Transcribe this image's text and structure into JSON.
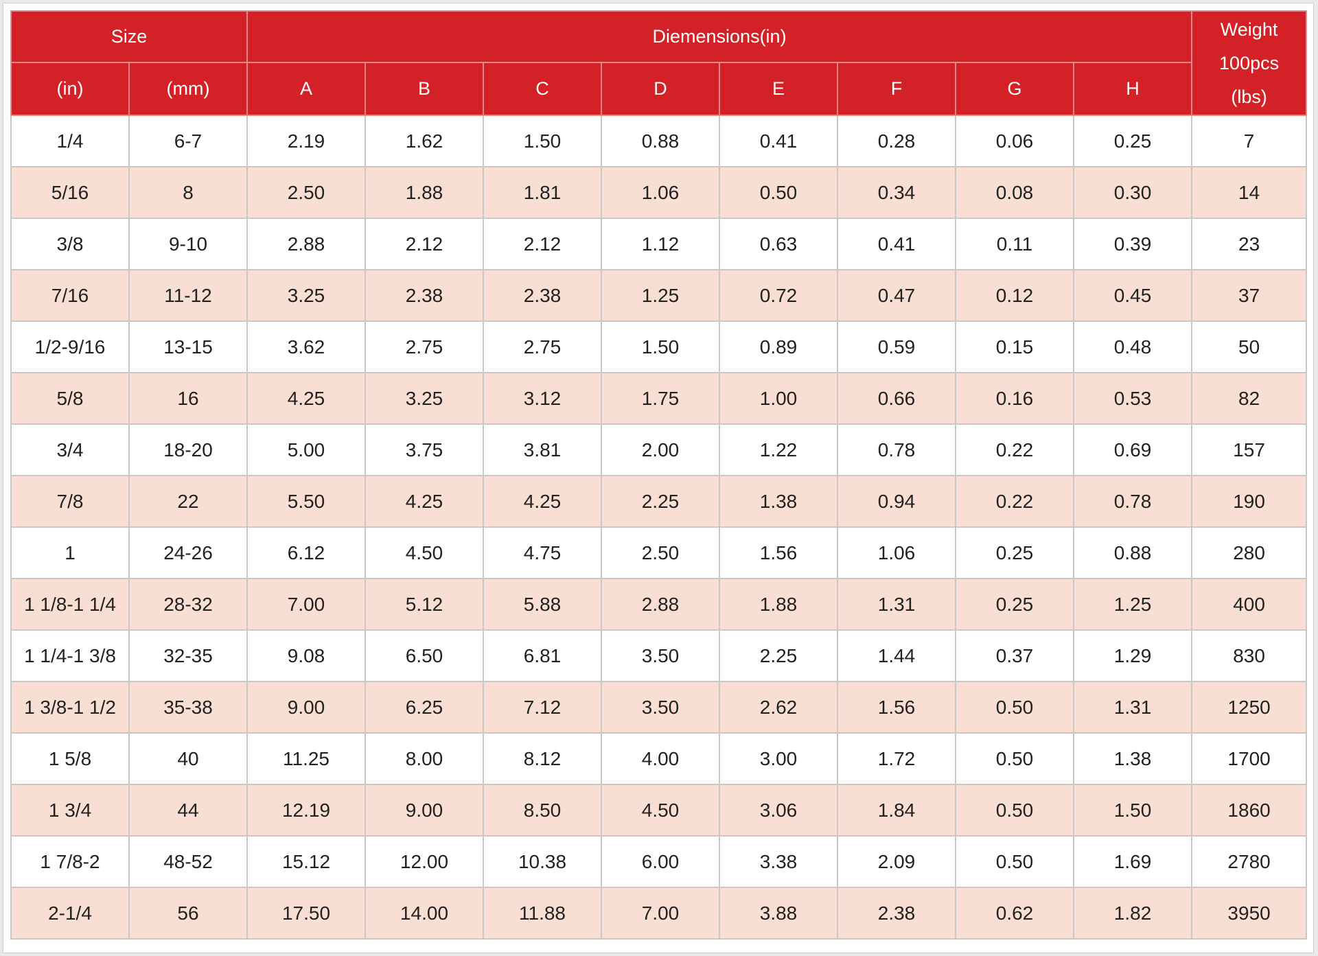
{
  "headers": {
    "size": "Size",
    "dimensions": "Diemensions(in)",
    "weight": [
      "Weight",
      "100pcs",
      "(lbs)"
    ],
    "in": "(in)",
    "mm": "(mm)",
    "dims": [
      "A",
      "B",
      "C",
      "D",
      "E",
      "F",
      "G",
      "H"
    ]
  },
  "rows": [
    [
      "1/4",
      "6-7",
      "2.19",
      "1.62",
      "1.50",
      "0.88",
      "0.41",
      "0.28",
      "0.06",
      "0.25",
      "7"
    ],
    [
      "5/16",
      "8",
      "2.50",
      "1.88",
      "1.81",
      "1.06",
      "0.50",
      "0.34",
      "0.08",
      "0.30",
      "14"
    ],
    [
      "3/8",
      "9-10",
      "2.88",
      "2.12",
      "2.12",
      "1.12",
      "0.63",
      "0.41",
      "0.11",
      "0.39",
      "23"
    ],
    [
      "7/16",
      "11-12",
      "3.25",
      "2.38",
      "2.38",
      "1.25",
      "0.72",
      "0.47",
      "0.12",
      "0.45",
      "37"
    ],
    [
      "1/2-9/16",
      "13-15",
      "3.62",
      "2.75",
      "2.75",
      "1.50",
      "0.89",
      "0.59",
      "0.15",
      "0.48",
      "50"
    ],
    [
      "5/8",
      "16",
      "4.25",
      "3.25",
      "3.12",
      "1.75",
      "1.00",
      "0.66",
      "0.16",
      "0.53",
      "82"
    ],
    [
      "3/4",
      "18-20",
      "5.00",
      "3.75",
      "3.81",
      "2.00",
      "1.22",
      "0.78",
      "0.22",
      "0.69",
      "157"
    ],
    [
      "7/8",
      "22",
      "5.50",
      "4.25",
      "4.25",
      "2.25",
      "1.38",
      "0.94",
      "0.22",
      "0.78",
      "190"
    ],
    [
      "1",
      "24-26",
      "6.12",
      "4.50",
      "4.75",
      "2.50",
      "1.56",
      "1.06",
      "0.25",
      "0.88",
      "280"
    ],
    [
      "1 1/8-1 1/4",
      "28-32",
      "7.00",
      "5.12",
      "5.88",
      "2.88",
      "1.88",
      "1.31",
      "0.25",
      "1.25",
      "400"
    ],
    [
      "1 1/4-1 3/8",
      "32-35",
      "9.08",
      "6.50",
      "6.81",
      "3.50",
      "2.25",
      "1.44",
      "0.37",
      "1.29",
      "830"
    ],
    [
      "1 3/8-1 1/2",
      "35-38",
      "9.00",
      "6.25",
      "7.12",
      "3.50",
      "2.62",
      "1.56",
      "0.50",
      "1.31",
      "1250"
    ],
    [
      "1 5/8",
      "40",
      "11.25",
      "8.00",
      "8.12",
      "4.00",
      "3.00",
      "1.72",
      "0.50",
      "1.38",
      "1700"
    ],
    [
      "1 3/4",
      "44",
      "12.19",
      "9.00",
      "8.50",
      "4.50",
      "3.06",
      "1.84",
      "0.50",
      "1.50",
      "1860"
    ],
    [
      "1 7/8-2",
      "48-52",
      "15.12",
      "12.00",
      "10.38",
      "6.00",
      "3.38",
      "2.09",
      "0.50",
      "1.69",
      "2780"
    ],
    [
      "2-1/4",
      "56",
      "17.50",
      "14.00",
      "11.88",
      "7.00",
      "3.88",
      "2.38",
      "0.62",
      "1.82",
      "3950"
    ]
  ],
  "colors": {
    "header_bg": "#d42127",
    "header_text": "#ffffff",
    "stripe_bg": "#f9ded4",
    "row_bg": "#ffffff"
  }
}
